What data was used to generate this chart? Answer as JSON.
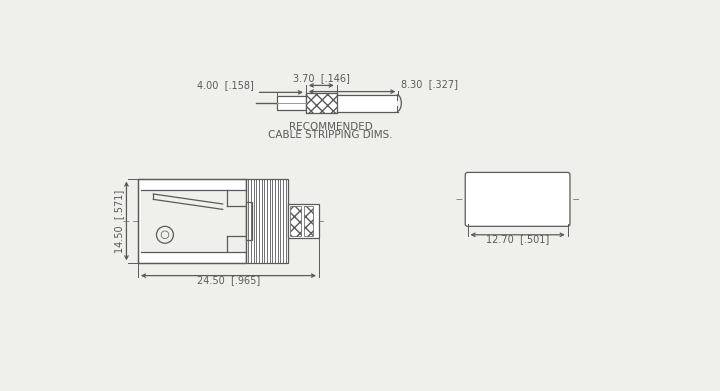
{
  "bg_color": "#efefeb",
  "line_color": "#5a5a5a",
  "dim_370": "3.70  [.146]",
  "dim_400": "4.00  [.158]",
  "dim_830": "8.30  [.327]",
  "dim_1450": "14.50  [.571]",
  "dim_2450": "24.50  [.965]",
  "dim_1270": "12.70  [.501]",
  "title_line1": "RECOMMENDED",
  "title_line2": "CABLE STRIPPING DIMS.",
  "font_size_dim": 7.0,
  "font_size_title": 7.5
}
